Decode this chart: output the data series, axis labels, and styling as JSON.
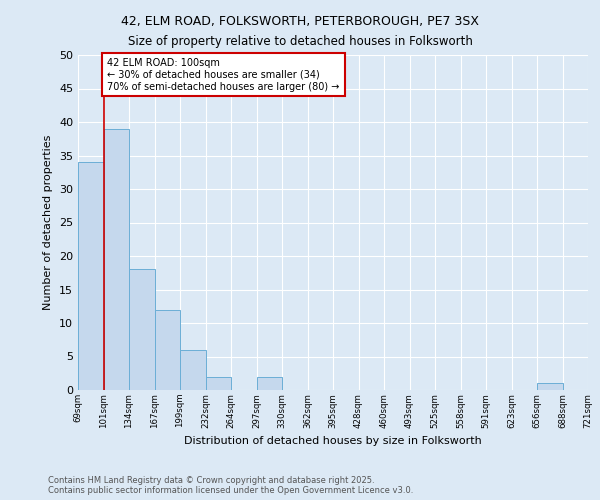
{
  "title_line1": "42, ELM ROAD, FOLKSWORTH, PETERBOROUGH, PE7 3SX",
  "title_line2": "Size of property relative to detached houses in Folksworth",
  "xlabel": "Distribution of detached houses by size in Folksworth",
  "ylabel": "Number of detached properties",
  "footnote1": "Contains HM Land Registry data © Crown copyright and database right 2025.",
  "footnote2": "Contains public sector information licensed under the Open Government Licence v3.0.",
  "bin_labels": [
    "69sqm",
    "101sqm",
    "134sqm",
    "167sqm",
    "199sqm",
    "232sqm",
    "264sqm",
    "297sqm",
    "330sqm",
    "362sqm",
    "395sqm",
    "428sqm",
    "460sqm",
    "493sqm",
    "525sqm",
    "558sqm",
    "591sqm",
    "623sqm",
    "656sqm",
    "688sqm",
    "721sqm"
  ],
  "bar_values": [
    34,
    39,
    18,
    12,
    6,
    2,
    0,
    2,
    0,
    0,
    0,
    0,
    0,
    0,
    0,
    0,
    0,
    0,
    1,
    0
  ],
  "bar_color": "#c5d8ed",
  "bar_edge_color": "#6baed6",
  "background_color": "#dce9f5",
  "grid_color": "#ffffff",
  "red_line_bar_index": 1,
  "annotation_text": "42 ELM ROAD: 100sqm\n← 30% of detached houses are smaller (34)\n70% of semi-detached houses are larger (80) →",
  "annotation_box_color": "#ffffff",
  "annotation_box_edge_color": "#cc0000",
  "annotation_text_color": "#000000",
  "red_line_color": "#cc0000",
  "ylim": [
    0,
    50
  ],
  "yticks": [
    0,
    5,
    10,
    15,
    20,
    25,
    30,
    35,
    40,
    45,
    50
  ]
}
